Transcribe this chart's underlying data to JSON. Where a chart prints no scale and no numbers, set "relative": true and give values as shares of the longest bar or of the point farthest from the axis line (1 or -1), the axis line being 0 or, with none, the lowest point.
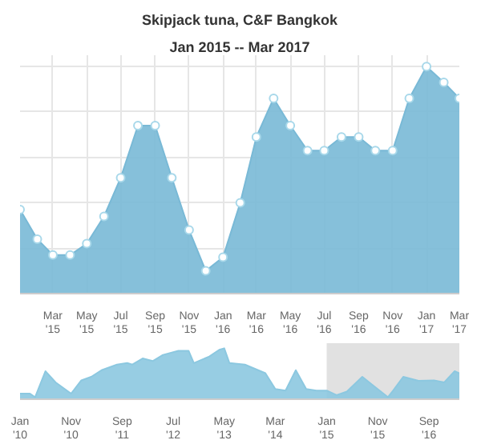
{
  "chart_data": [
    {
      "type": "area",
      "title": "Skipjack tuna, C&F Bangkok",
      "subtitle": "Jan 2015 -- Mar 2017",
      "relative": true,
      "grid": true,
      "marker": "circle",
      "x": [
        "2015-01",
        "2015-02",
        "2015-03",
        "2015-04",
        "2015-05",
        "2015-06",
        "2015-07",
        "2015-08",
        "2015-09",
        "2015-10",
        "2015-11",
        "2015-12",
        "2016-01",
        "2016-02",
        "2016-03",
        "2016-04",
        "2016-05",
        "2016-06",
        "2016-07",
        "2016-08",
        "2016-09",
        "2016-10",
        "2016-11",
        "2016-12",
        "2017-01",
        "2017-02",
        "2017-03"
      ],
      "series": [
        {
          "color": "#79b9d6",
          "values": [
            0.37,
            0.24,
            0.17,
            0.17,
            0.22,
            0.34,
            0.51,
            0.74,
            0.74,
            0.51,
            0.28,
            0.1,
            0.16,
            0.4,
            0.69,
            0.86,
            0.74,
            0.63,
            0.63,
            0.69,
            0.69,
            0.63,
            0.63,
            0.86,
            1,
            0.93,
            0.86
          ]
        }
      ],
      "xlim": [
        "2015-01",
        "2017-03"
      ],
      "xticks": [
        {
          "value": "2015-03",
          "label": "Mar\n'15"
        },
        {
          "value": "2015-05",
          "label": "May\n'15"
        },
        {
          "value": "2015-07",
          "label": "Jul\n'15"
        },
        {
          "value": "2015-09",
          "label": "Sep\n'15"
        },
        {
          "value": "2015-11",
          "label": "Nov\n'15"
        },
        {
          "value": "2016-01",
          "label": "Jan\n'16"
        },
        {
          "value": "2016-03",
          "label": "Mar\n'16"
        },
        {
          "value": "2016-05",
          "label": "May\n'16"
        },
        {
          "value": "2016-07",
          "label": "Jul\n'16"
        },
        {
          "value": "2016-09",
          "label": "Sep\n'16"
        },
        {
          "value": "2016-11",
          "label": "Nov\n'16"
        },
        {
          "value": "2017-01",
          "label": "Jan\n'17"
        },
        {
          "value": "2017-03",
          "label": "Mar\n'17"
        }
      ]
    },
    {
      "type": "area",
      "relative": true,
      "grid": false,
      "x": [
        "2010-01",
        "2010-03",
        "2010-04",
        "2010-06",
        "2010-08",
        "2010-11",
        "2011-01",
        "2011-03",
        "2011-05",
        "2011-08",
        "2011-10",
        "2011-11",
        "2012-01",
        "2012-03",
        "2012-05",
        "2012-08",
        "2012-10",
        "2012-11",
        "2013-02",
        "2013-04",
        "2013-05",
        "2013-06",
        "2013-09",
        "2014-01",
        "2014-03",
        "2014-05",
        "2014-07",
        "2014-09",
        "2014-11",
        "2015-01",
        "2015-03",
        "2015-05",
        "2015-08",
        "2015-10",
        "2016-01",
        "2016-02",
        "2016-04",
        "2016-07",
        "2016-10",
        "2016-12",
        "2017-02",
        "2017-03"
      ],
      "series": [
        {
          "color": "#8cc8e0",
          "values": [
            0.11,
            0.11,
            0.04,
            0.55,
            0.33,
            0.11,
            0.37,
            0.44,
            0.57,
            0.68,
            0.71,
            0.68,
            0.8,
            0.75,
            0.87,
            0.95,
            0.95,
            0.71,
            0.84,
            0.97,
            1,
            0.71,
            0.68,
            0.51,
            0.2,
            0.17,
            0.57,
            0.2,
            0.17,
            0.17,
            0.08,
            0.15,
            0.44,
            0.28,
            0.04,
            0.17,
            0.44,
            0.36,
            0.37,
            0.33,
            0.55,
            0.51
          ]
        }
      ],
      "xlim": [
        "2010-01",
        "2017-03"
      ],
      "bands": [
        {
          "axis": "x",
          "from": "2015-01",
          "to": "2017-03",
          "color": "#d9d9d9"
        }
      ],
      "xticks": [
        {
          "value": "2010-01",
          "label": "Jan\n'10"
        },
        {
          "value": "2010-11",
          "label": "Nov\n'10"
        },
        {
          "value": "2011-09",
          "label": "Sep\n'11"
        },
        {
          "value": "2012-07",
          "label": "Jul\n'12"
        },
        {
          "value": "2013-05",
          "label": "May\n'13"
        },
        {
          "value": "2014-03",
          "label": "Mar\n'14"
        },
        {
          "value": "2015-01",
          "label": "Jan\n'15"
        },
        {
          "value": "2015-11",
          "label": "Nov\n'15"
        },
        {
          "value": "2016-09",
          "label": "Sep\n'16"
        }
      ]
    }
  ]
}
